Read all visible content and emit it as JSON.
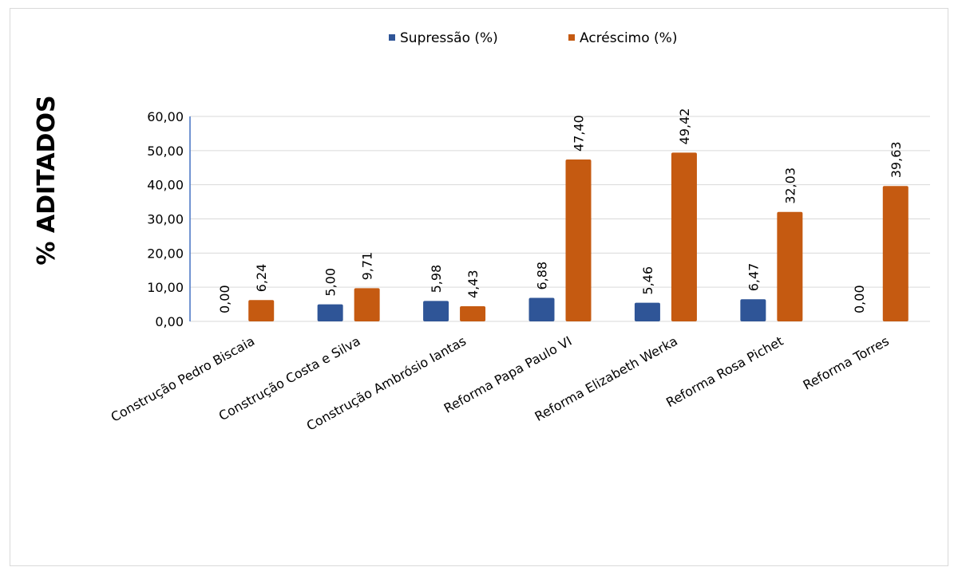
{
  "chart_data": {
    "type": "bar",
    "title": "",
    "xlabel": "",
    "ylabel": "% ADITADOS",
    "categories": [
      "Construção Pedro Biscaia",
      "Construção Costa e Silva",
      "Construção Ambrósio Iantas",
      "Reforma Papa Paulo VI",
      "Reforma Elizabeth Werka",
      "Reforma Rosa Pichet",
      "Reforma Torres"
    ],
    "series": [
      {
        "name": "Supressão  (%)",
        "color": "#2F5597",
        "values": [
          0.0,
          5.0,
          5.98,
          6.88,
          5.46,
          6.47,
          0.0
        ],
        "labels": [
          "0,00",
          "5,00",
          "5,98",
          "6,88",
          "5,46",
          "6,47",
          "0,00"
        ]
      },
      {
        "name": "Acréscimo  (%)",
        "color": "#C55A11",
        "values": [
          6.24,
          9.71,
          4.43,
          47.4,
          49.42,
          32.03,
          39.63
        ],
        "labels": [
          "6,24",
          "9,71",
          "4,43",
          "47,40",
          "49,42",
          "32,03",
          "39,63"
        ]
      }
    ],
    "ylim": [
      0,
      60
    ],
    "yticks": [
      0,
      10,
      20,
      30,
      40,
      50,
      60
    ],
    "ytick_labels": [
      "0,00",
      "10,00",
      "20,00",
      "30,00",
      "40,00",
      "50,00",
      "60,00"
    ],
    "grid": true,
    "legend_position": "top"
  }
}
